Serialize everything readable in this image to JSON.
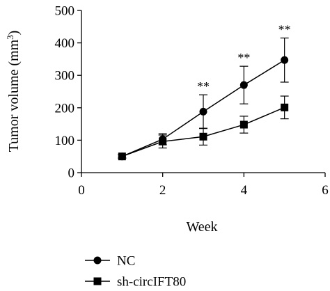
{
  "chart_data": {
    "type": "line",
    "title": "",
    "xlabel": "Week",
    "ylabel": "Tumor volume (mm",
    "ylabel_sup": "3",
    "ylabel_close": ")",
    "xlim": [
      0,
      6
    ],
    "ylim": [
      0,
      500
    ],
    "x_ticks": [
      "0",
      "2",
      "4",
      "6"
    ],
    "y_ticks": [
      "0",
      "100",
      "200",
      "300",
      "400",
      "500"
    ],
    "grid": false,
    "legend_position": "bottom-left",
    "series": [
      {
        "name": "NC",
        "marker": "circle",
        "color": "#000000",
        "x": [
          1,
          2,
          3,
          4,
          5
        ],
        "y": [
          50,
          103,
          188,
          270,
          347
        ],
        "error": [
          5,
          17,
          52,
          58,
          68
        ]
      },
      {
        "name": "sh-circIFT80",
        "marker": "square",
        "color": "#000000",
        "x": [
          1,
          2,
          3,
          4,
          5
        ],
        "y": [
          50,
          96,
          111,
          148,
          201
        ],
        "error": [
          5,
          20,
          26,
          26,
          35
        ]
      }
    ],
    "annotations": [
      {
        "text": "**",
        "x": 3
      },
      {
        "text": "**",
        "x": 4
      },
      {
        "text": "**",
        "x": 5
      }
    ]
  }
}
